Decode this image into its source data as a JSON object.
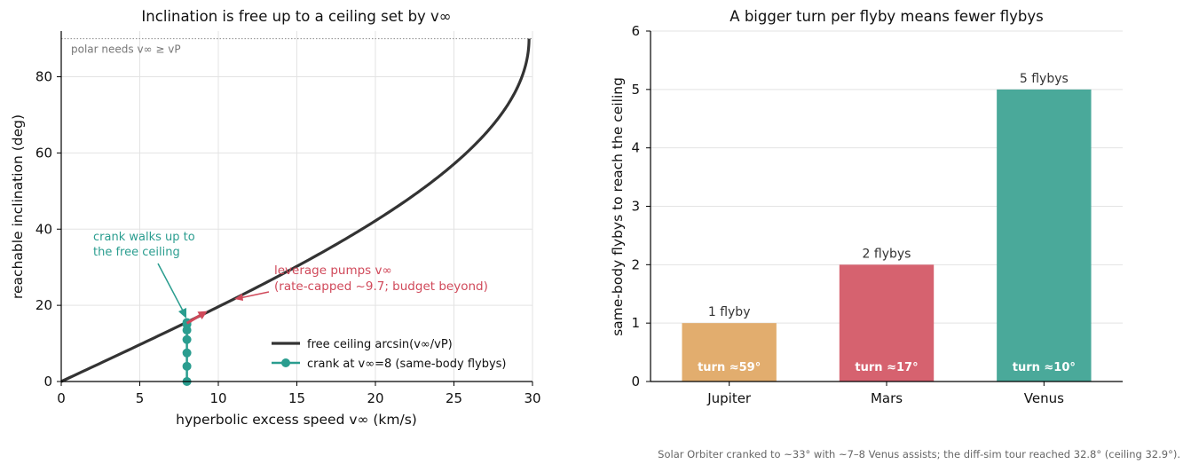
{
  "chart_data": [
    {
      "type": "line",
      "title": "Inclination is free up to a ceiling set by v∞",
      "xlabel": "hyperbolic excess speed v∞ (km/s)",
      "ylabel": "reachable inclination (deg)",
      "xlim": [
        0,
        30
      ],
      "ylim": [
        0,
        92
      ],
      "x_ticks": [
        "0",
        "5",
        "10",
        "15",
        "20",
        "25",
        "30"
      ],
      "y_ticks": [
        "0",
        "20",
        "40",
        "60",
        "80"
      ],
      "grid": true,
      "legend_position": "lower-right",
      "vp": 29.78,
      "series": [
        {
          "name": "free ceiling  arcsin(v∞/vP)",
          "kind": "curve",
          "color": "#333333",
          "x": [
            0,
            5,
            10,
            15,
            20,
            25,
            28,
            29,
            29.5,
            29.78
          ],
          "y": [
            0,
            9.7,
            19.6,
            30.3,
            42.2,
            57.1,
            70.1,
            76.9,
            82.3,
            90
          ]
        },
        {
          "name": "crank at v∞=8 (same-body flybys)",
          "kind": "points",
          "color": "#2a9d8f",
          "x": [
            8,
            8,
            8,
            8,
            8,
            8,
            8
          ],
          "y": [
            0,
            4,
            7.5,
            11,
            13.5,
            15,
            15.5
          ]
        }
      ],
      "polar_line": {
        "y": 90,
        "label": "polar needs v∞ ≥ vP"
      },
      "annotations": {
        "crank_line1": "crank walks up to",
        "crank_line2": "the free ceiling",
        "leverage_line1": "leverage pumps v∞",
        "leverage_line2": "(rate-capped ~9.7; budget beyond)",
        "leverage_arrow": {
          "x0": 8.0,
          "y0": 15.3,
          "x1": 9.3,
          "y1": 18.5
        }
      }
    },
    {
      "type": "bar",
      "title": "A bigger turn per flyby means fewer flybys",
      "xlabel": "",
      "ylabel": "same-body flybys to reach the ceiling",
      "ylim": [
        0,
        6
      ],
      "y_ticks": [
        "0",
        "1",
        "2",
        "3",
        "4",
        "5",
        "6"
      ],
      "grid": true,
      "categories": [
        "Jupiter",
        "Mars",
        "Venus"
      ],
      "values": [
        1,
        2,
        5
      ],
      "colors": [
        "#e2ad6e",
        "#d6626f",
        "#4aa99a"
      ],
      "value_labels": [
        "1 flyby",
        "2 flybys",
        "5 flybys"
      ],
      "turn_labels": [
        "turn ≈59°",
        "turn ≈17°",
        "turn ≈10°"
      ]
    }
  ],
  "footnote": "Solar Orbiter cranked to ~33° with ~7–8 Venus assists; the diff-sim tour reached 32.8° (ceiling 32.9°)."
}
